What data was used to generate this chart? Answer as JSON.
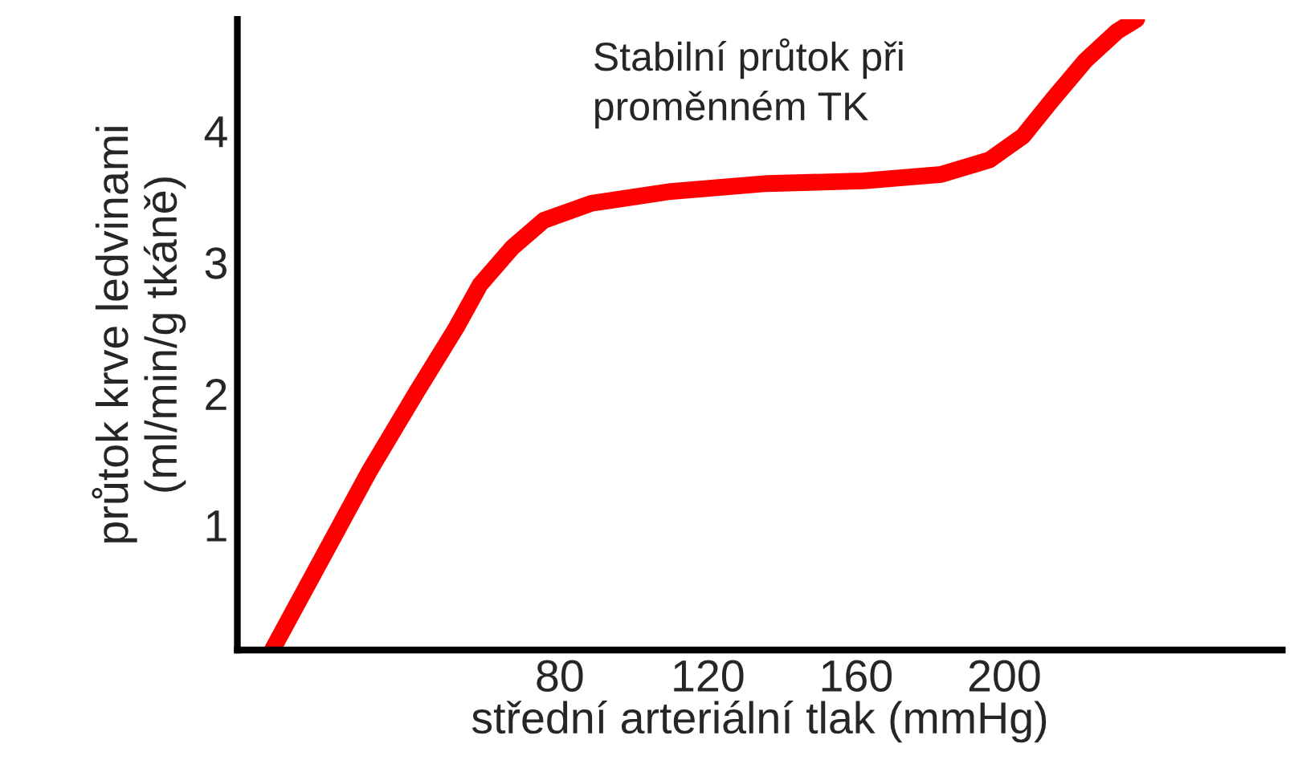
{
  "chart_data": {
    "type": "line",
    "xlabel": "střední arteriální tlak (mmHg)",
    "ylabel": "průtok krve ledvinami\n(ml/min/g tkáně)",
    "annotations": [
      "Stabilní průtok při\nproměnném TK"
    ],
    "x": [
      2.6,
      15.5,
      28.4,
      41.3,
      52,
      58.5,
      67.1,
      75.7,
      88.6,
      110,
      136,
      162,
      183,
      196,
      205,
      213,
      222,
      230.5,
      235.7
    ],
    "series": [
      {
        "color": "#ff0000",
        "values": [
          0.06,
          0.73,
          1.4,
          2.01,
          2.5,
          2.83,
          3.11,
          3.32,
          3.45,
          3.54,
          3.6,
          3.62,
          3.67,
          3.78,
          3.96,
          4.24,
          4.54,
          4.76,
          4.85
        ]
      }
    ],
    "xlim": [
      -7,
      275
    ],
    "ylim": [
      0.05,
      4.85
    ],
    "xticks": [
      80,
      120,
      160,
      200
    ],
    "yticks": [
      1,
      2,
      3,
      4
    ],
    "grid": false,
    "legend": false,
    "marker": "none",
    "line_style": "solid"
  }
}
